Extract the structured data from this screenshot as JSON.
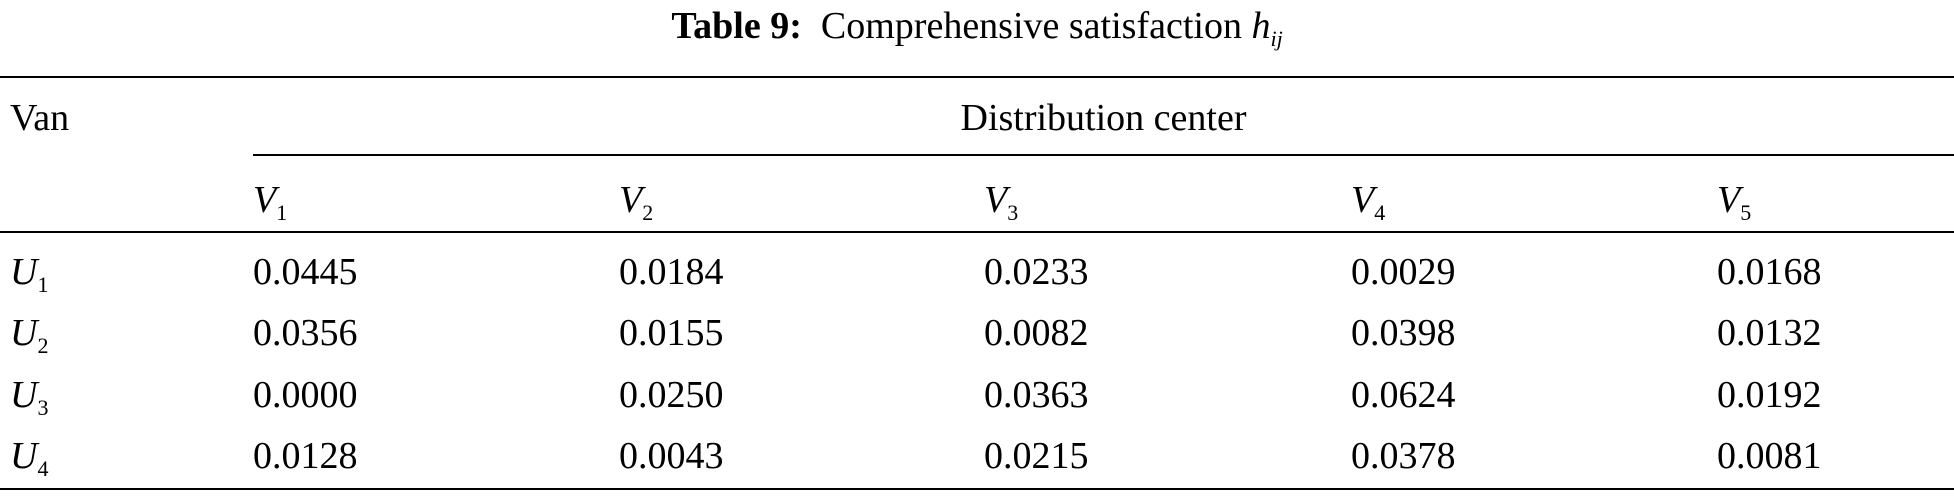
{
  "caption": {
    "label": "Table 9:",
    "text": "Comprehensive satisfaction",
    "symbol": "h",
    "symbol_sub": "ij"
  },
  "table": {
    "row_header": "Van",
    "group_header": "Distribution center",
    "columns": [
      {
        "letter": "V",
        "sub": "1"
      },
      {
        "letter": "V",
        "sub": "2"
      },
      {
        "letter": "V",
        "sub": "3"
      },
      {
        "letter": "V",
        "sub": "4"
      },
      {
        "letter": "V",
        "sub": "5"
      }
    ],
    "rows": [
      {
        "letter": "U",
        "sub": "1",
        "cells": [
          "0.0445",
          "0.0184",
          "0.0233",
          "0.0029",
          "0.0168"
        ]
      },
      {
        "letter": "U",
        "sub": "2",
        "cells": [
          "0.0356",
          "0.0155",
          "0.0082",
          "0.0398",
          "0.0132"
        ]
      },
      {
        "letter": "U",
        "sub": "3",
        "cells": [
          "0.0000",
          "0.0250",
          "0.0363",
          "0.0624",
          "0.0192"
        ]
      },
      {
        "letter": "U",
        "sub": "4",
        "cells": [
          "0.0128",
          "0.0043",
          "0.0215",
          "0.0378",
          "0.0081"
        ]
      }
    ]
  }
}
